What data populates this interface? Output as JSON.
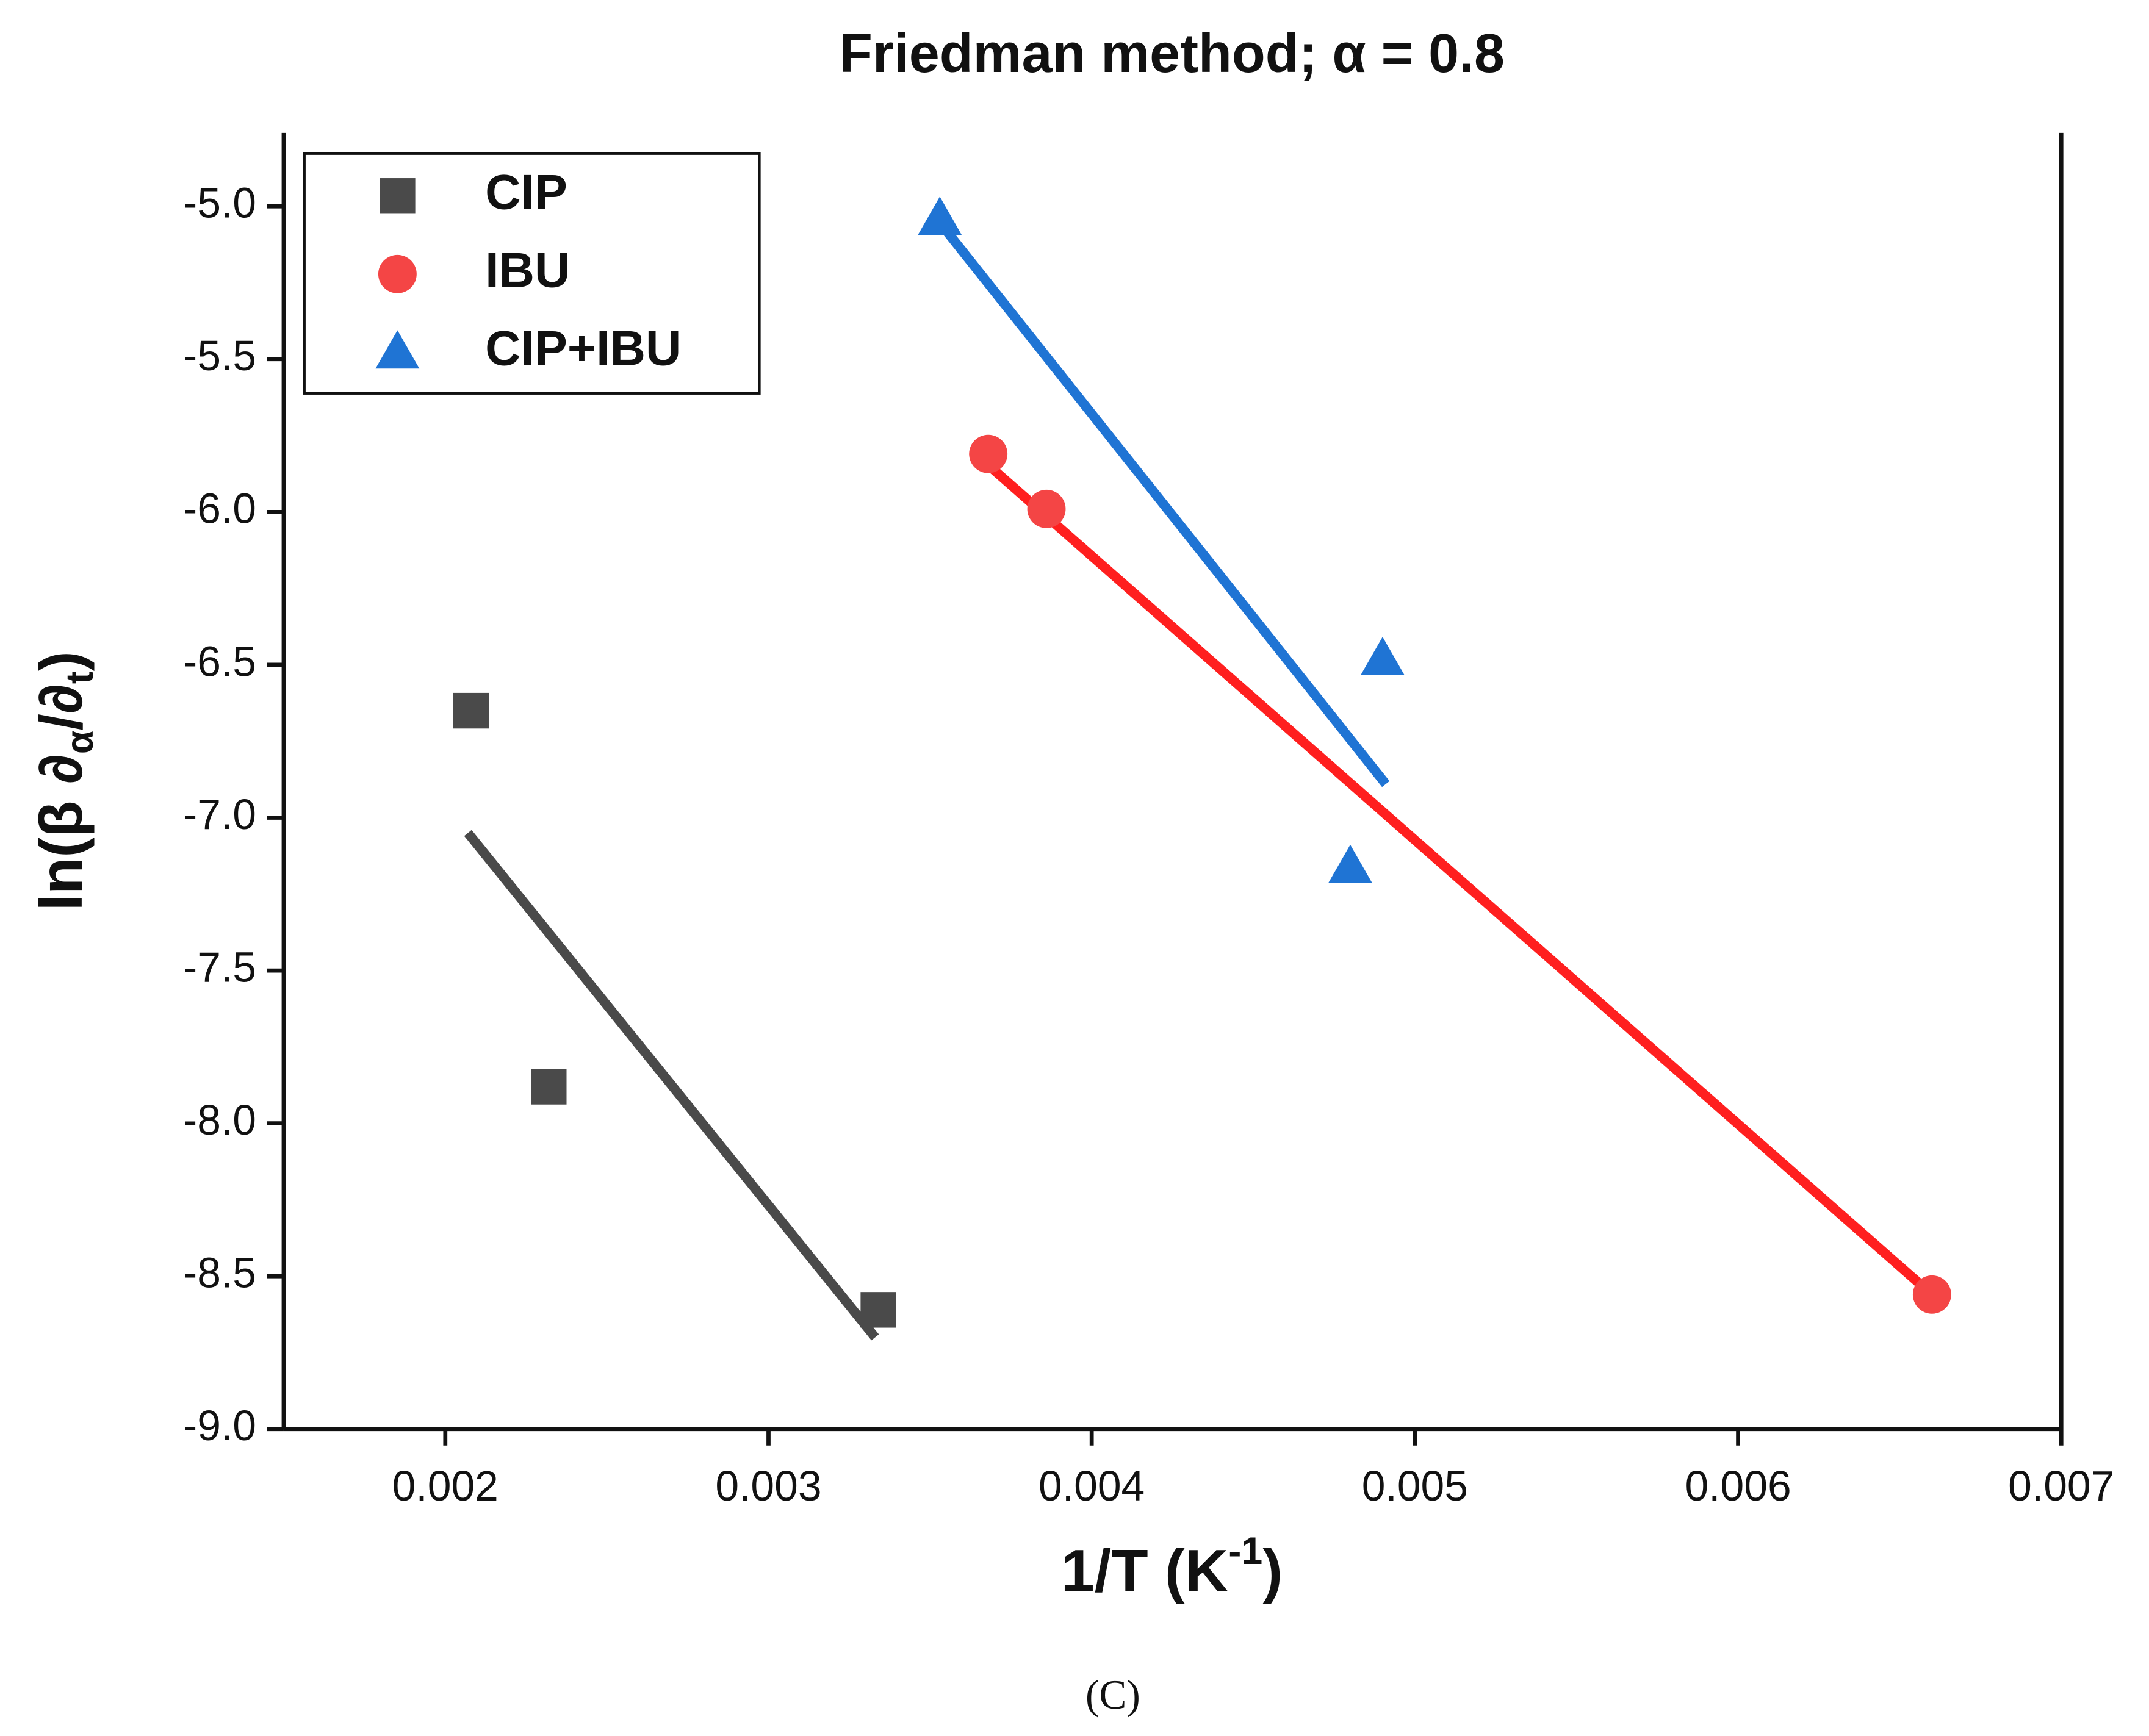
{
  "chart_data": {
    "type": "scatter",
    "title": "Friedman method; α = 0.8",
    "xlabel": {
      "main": "1/T (K",
      "sup": "-1",
      "end": ")"
    },
    "ylabel": {
      "main": "ln(β ∂",
      "sub1": "α",
      "mid": "/∂",
      "sub2": "t",
      "end": ")"
    },
    "caption": "(C)",
    "xlim": [
      0.0015,
      0.007
    ],
    "xticks": [
      0.002,
      0.003,
      0.004,
      0.005,
      0.006,
      0.007
    ],
    "ylim": [
      -9,
      -4.76
    ],
    "yticks": [
      {
        "value": -9,
        "label": "-9.0"
      },
      -8.5,
      {
        "value": -8,
        "label": "-8.0"
      },
      -7.5,
      {
        "value": -7,
        "label": "-7.0"
      },
      -6.5,
      {
        "value": -6,
        "label": "-6.0"
      },
      -5.5,
      {
        "value": -5,
        "label": "-5.0"
      }
    ],
    "legend": "upper left",
    "series": [
      {
        "name": "CIP",
        "color": "#4a4a4a",
        "marker": "square",
        "x": [
          0.00208,
          0.00232,
          0.00334
        ],
        "values": [
          -6.65,
          -7.88,
          -8.61
        ],
        "fit_x": [
          0.00207,
          0.00333
        ],
        "fit_y": [
          -7.05,
          -8.7
        ]
      },
      {
        "name": "IBU",
        "color": "#f44545",
        "line_color": "#ff1f1f",
        "marker": "circle",
        "x": [
          0.00368,
          0.00386,
          0.0066
        ],
        "values": [
          -5.81,
          -5.99,
          -8.56
        ],
        "fit_x": [
          0.00363,
          0.0066
        ],
        "fit_y": [
          -5.8,
          -8.56
        ]
      },
      {
        "name": "CIP+IBU",
        "color": "#1f74d4",
        "marker": "triangle",
        "x": [
          0.00353,
          0.0049,
          0.0048
        ],
        "values": [
          -5.04,
          -6.48,
          -7.16
        ],
        "fit_x": [
          0.00352,
          0.00491
        ],
        "fit_y": [
          -5.04,
          -6.89
        ]
      }
    ]
  }
}
